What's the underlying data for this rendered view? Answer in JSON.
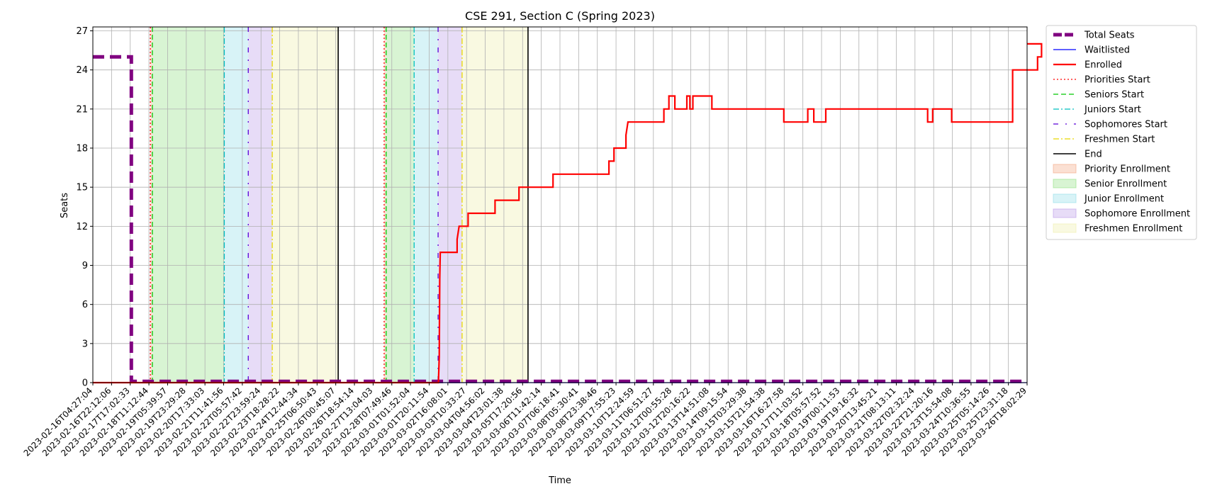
{
  "chart_data": {
    "type": "line",
    "title": "CSE 291, Section C (Spring 2023)",
    "xlabel": "Time",
    "ylabel": "Seats",
    "ylim": [
      0,
      27.3
    ],
    "yticks": [
      0,
      3,
      6,
      9,
      12,
      15,
      18,
      21,
      24,
      27
    ],
    "grid": true,
    "legend_placement": "outside right, top",
    "x_range": [
      "2023-02-16T04:27:04",
      "2023-03-27T03:30:00"
    ],
    "x_tick_labels": [
      "2023-02-16T04:27:04",
      "2023-02-16T22:12:06",
      "2023-02-17T17:02:33",
      "2023-02-18T11:12:44",
      "2023-02-19T05:39:57",
      "2023-02-19T23:29:28",
      "2023-02-20T17:33:03",
      "2023-02-21T11:41:56",
      "2023-02-22T05:57:42",
      "2023-02-22T23:59:24",
      "2023-02-23T18:28:22",
      "2023-02-24T12:44:34",
      "2023-02-25T06:50:43",
      "2023-02-26T00:45:07",
      "2023-02-26T18:54:14",
      "2023-02-27T13:04:03",
      "2023-02-28T07:49:46",
      "2023-03-01T01:52:04",
      "2023-03-01T20:11:54",
      "2023-03-02T16:08:01",
      "2023-03-03T10:33:27",
      "2023-03-04T04:56:02",
      "2023-03-04T23:01:38",
      "2023-03-05T17:20:56",
      "2023-03-06T11:42:14",
      "2023-03-07T06:18:41",
      "2023-03-08T05:30:41",
      "2023-03-08T23:38:46",
      "2023-03-09T17:55:23",
      "2023-03-10T12:24:59",
      "2023-03-11T06:51:27",
      "2023-03-12T00:55:28",
      "2023-03-12T20:16:22",
      "2023-03-13T14:51:08",
      "2023-03-14T09:15:54",
      "2023-03-15T03:29:38",
      "2023-03-15T21:54:38",
      "2023-03-16T16:27:58",
      "2023-03-17T11:03:52",
      "2023-03-18T05:57:52",
      "2023-03-19T00:11:53",
      "2023-03-19T19:16:32",
      "2023-03-20T13:45:21",
      "2023-03-21T08:13:11",
      "2023-03-22T02:32:24",
      "2023-03-22T21:20:16",
      "2023-03-23T15:54:08",
      "2023-03-24T10:36:55",
      "2023-03-25T05:14:26",
      "2023-03-25T23:31:18",
      "2023-03-26T18:02:29"
    ],
    "series": [
      {
        "name": "Total Seats",
        "color": "#800080",
        "style": "dashed",
        "points": [
          [
            "2023-02-16T04:27:04",
            25
          ],
          [
            "2023-02-17T19:00:00",
            25
          ],
          [
            "2023-02-17T19:00:00",
            0.1
          ],
          [
            "2023-03-27T03:30:00",
            0.1
          ]
        ]
      },
      {
        "name": "Waitlisted",
        "color": "#0000ff",
        "style": "solid",
        "points": [
          [
            "2023-02-16T04:27:04",
            0
          ],
          [
            "2023-03-27T03:30:00",
            0
          ]
        ]
      },
      {
        "name": "Enrolled",
        "color": "#ff0000",
        "style": "solid",
        "points": [
          [
            "2023-02-16T04:27:04",
            0
          ],
          [
            "2023-03-02T14:20:00",
            0
          ],
          [
            "2023-03-02T15:10:00",
            2
          ],
          [
            "2023-03-02T15:40:00",
            8
          ],
          [
            "2023-03-02T16:08:01",
            10
          ],
          [
            "2023-03-03T09:00:00",
            10
          ],
          [
            "2023-03-03T09:00:00",
            11
          ],
          [
            "2023-03-03T11:00:00",
            12
          ],
          [
            "2023-03-03T20:00:00",
            12
          ],
          [
            "2023-03-03T20:00:00",
            13
          ],
          [
            "2023-03-04T23:00:00",
            13
          ],
          [
            "2023-03-04T23:00:00",
            14
          ],
          [
            "2023-03-05T23:00:00",
            14
          ],
          [
            "2023-03-05T23:00:00",
            15
          ],
          [
            "2023-03-07T09:00:00",
            15
          ],
          [
            "2023-03-07T09:00:00",
            16
          ],
          [
            "2023-03-09T17:00:00",
            16
          ],
          [
            "2023-03-09T17:00:00",
            17
          ],
          [
            "2023-03-09T22:00:00",
            17
          ],
          [
            "2023-03-09T22:00:00",
            18
          ],
          [
            "2023-03-10T10:00:00",
            18
          ],
          [
            "2023-03-10T10:00:00",
            19
          ],
          [
            "2023-03-10T12:00:00",
            20
          ],
          [
            "2023-03-12T00:00:00",
            20
          ],
          [
            "2023-03-12T00:00:00",
            21
          ],
          [
            "2023-03-12T05:00:00",
            21
          ],
          [
            "2023-03-12T05:00:00",
            22
          ],
          [
            "2023-03-12T11:00:00",
            22
          ],
          [
            "2023-03-12T11:00:00",
            21
          ],
          [
            "2023-03-12T23:00:00",
            21
          ],
          [
            "2023-03-12T23:00:00",
            22
          ],
          [
            "2023-03-13T02:00:00",
            22
          ],
          [
            "2023-03-13T02:00:00",
            21
          ],
          [
            "2023-03-13T05:00:00",
            21
          ],
          [
            "2023-03-13T05:00:00",
            22
          ],
          [
            "2023-03-14T00:00:00",
            22
          ],
          [
            "2023-03-14T00:00:00",
            21
          ],
          [
            "2023-03-17T00:00:00",
            21
          ],
          [
            "2023-03-17T00:00:00",
            20
          ],
          [
            "2023-03-18T00:00:00",
            20
          ],
          [
            "2023-03-18T00:00:00",
            21
          ],
          [
            "2023-03-18T06:00:00",
            21
          ],
          [
            "2023-03-18T06:00:00",
            20
          ],
          [
            "2023-03-18T18:00:00",
            20
          ],
          [
            "2023-03-18T18:00:00",
            21
          ],
          [
            "2023-03-23T00:00:00",
            21
          ],
          [
            "2023-03-23T00:00:00",
            20
          ],
          [
            "2023-03-23T05:00:00",
            20
          ],
          [
            "2023-03-23T05:00:00",
            21
          ],
          [
            "2023-03-24T00:00:00",
            21
          ],
          [
            "2023-03-24T00:00:00",
            20
          ],
          [
            "2023-03-26T13:00:00",
            20
          ],
          [
            "2023-03-26T13:00:00",
            24
          ],
          [
            "2023-03-27T14:00:00",
            24
          ],
          [
            "2023-03-27T14:00:00",
            25
          ],
          [
            "2023-03-27T18:00:00",
            25
          ],
          [
            "2023-03-27T18:00:00",
            26
          ],
          [
            "2023-03-27T03:30:00",
            26
          ]
        ]
      }
    ],
    "vertical_markers": [
      {
        "name": "Priorities Start",
        "color": "#ff0000",
        "style": "dotted",
        "times": [
          "2023-02-18T14:00:00",
          "2023-02-28T08:00:00"
        ]
      },
      {
        "name": "Seniors Start",
        "color": "#00c800",
        "style": "dashed",
        "times": [
          "2023-02-18T16:00:00",
          "2023-02-28T10:00:00"
        ]
      },
      {
        "name": "Juniors Start",
        "color": "#00bfbf",
        "style": "dashdot",
        "times": [
          "2023-02-21T16:00:00",
          "2023-03-01T14:00:00"
        ]
      },
      {
        "name": "Sophomores Start",
        "color": "#5a00d8",
        "style": "loose-dashdot",
        "times": [
          "2023-02-22T16:00:00",
          "2023-03-02T14:00:00"
        ]
      },
      {
        "name": "Freshmen Start",
        "color": "#e8d800",
        "style": "dashdot",
        "times": [
          "2023-02-23T16:00:00",
          "2023-03-03T14:00:00"
        ]
      },
      {
        "name": "End",
        "color": "#000000",
        "style": "solid",
        "times": [
          "2023-02-26T10:00:00",
          "2023-03-06T08:00:00"
        ]
      }
    ],
    "shaded_regions": [
      {
        "name": "Priority Enrollment",
        "color": "#f4a582",
        "spans": [
          [
            "2023-02-18T14:00:00",
            "2023-02-18T16:00:00"
          ],
          [
            "2023-02-28T08:00:00",
            "2023-02-28T10:00:00"
          ]
        ]
      },
      {
        "name": "Senior Enrollment",
        "color": "#90e080",
        "spans": [
          [
            "2023-02-18T16:00:00",
            "2023-02-21T16:00:00"
          ],
          [
            "2023-02-28T10:00:00",
            "2023-03-01T14:00:00"
          ]
        ]
      },
      {
        "name": "Junior Enrollment",
        "color": "#8fdde8",
        "spans": [
          [
            "2023-02-21T16:00:00",
            "2023-02-22T16:00:00"
          ],
          [
            "2023-03-01T14:00:00",
            "2023-03-02T14:00:00"
          ]
        ]
      },
      {
        "name": "Sophomore Enrollment",
        "color": "#b99ae8",
        "spans": [
          [
            "2023-02-22T16:00:00",
            "2023-02-23T16:00:00"
          ],
          [
            "2023-03-02T14:00:00",
            "2023-03-03T14:00:00"
          ]
        ]
      },
      {
        "name": "Freshmen Enrollment",
        "color": "#eeeeaa",
        "spans": [
          [
            "2023-02-23T16:00:00",
            "2023-02-26T10:00:00"
          ],
          [
            "2023-03-03T14:00:00",
            "2023-03-06T08:00:00"
          ]
        ]
      }
    ]
  }
}
